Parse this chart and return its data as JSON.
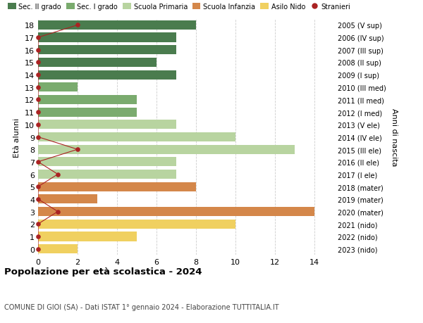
{
  "ages": [
    18,
    17,
    16,
    15,
    14,
    13,
    12,
    11,
    10,
    9,
    8,
    7,
    6,
    5,
    4,
    3,
    2,
    1,
    0
  ],
  "years": [
    "2005 (V sup)",
    "2006 (IV sup)",
    "2007 (III sup)",
    "2008 (II sup)",
    "2009 (I sup)",
    "2010 (III med)",
    "2011 (II med)",
    "2012 (I med)",
    "2013 (V ele)",
    "2014 (IV ele)",
    "2015 (III ele)",
    "2016 (II ele)",
    "2017 (I ele)",
    "2018 (mater)",
    "2019 (mater)",
    "2020 (mater)",
    "2021 (nido)",
    "2022 (nido)",
    "2023 (nido)"
  ],
  "bar_values": [
    8,
    7,
    7,
    6,
    7,
    2,
    5,
    5,
    7,
    10,
    13,
    7,
    7,
    8,
    3,
    14,
    10,
    5,
    2
  ],
  "bar_colors": [
    "#4a7c4e",
    "#4a7c4e",
    "#4a7c4e",
    "#4a7c4e",
    "#4a7c4e",
    "#7aab6e",
    "#7aab6e",
    "#7aab6e",
    "#b8d4a0",
    "#b8d4a0",
    "#b8d4a0",
    "#b8d4a0",
    "#b8d4a0",
    "#d4874a",
    "#d4874a",
    "#d4874a",
    "#f0d060",
    "#f0d060",
    "#f0d060"
  ],
  "stranieri_values": [
    2,
    0,
    0,
    0,
    0,
    0,
    0,
    0,
    0,
    0,
    2,
    0,
    1,
    0,
    0,
    1,
    0,
    0,
    0
  ],
  "stranieri_color": "#aa2222",
  "title": "Popolazione per età scolastica - 2024",
  "subtitle": "COMUNE DI GIOI (SA) - Dati ISTAT 1° gennaio 2024 - Elaborazione TUTTITALIA.IT",
  "ylabel_left": "Età alunni",
  "ylabel_right": "Anni di nascita",
  "xlim": [
    0,
    15
  ],
  "xticks": [
    0,
    2,
    4,
    6,
    8,
    10,
    12,
    14
  ],
  "legend_labels": [
    "Sec. II grado",
    "Sec. I grado",
    "Scuola Primaria",
    "Scuola Infanzia",
    "Asilo Nido",
    "Stranieri"
  ],
  "legend_colors": [
    "#4a7c4e",
    "#7aab6e",
    "#b8d4a0",
    "#d4874a",
    "#f0d060",
    "#aa2222"
  ],
  "background_color": "#ffffff",
  "grid_color": "#cccccc"
}
